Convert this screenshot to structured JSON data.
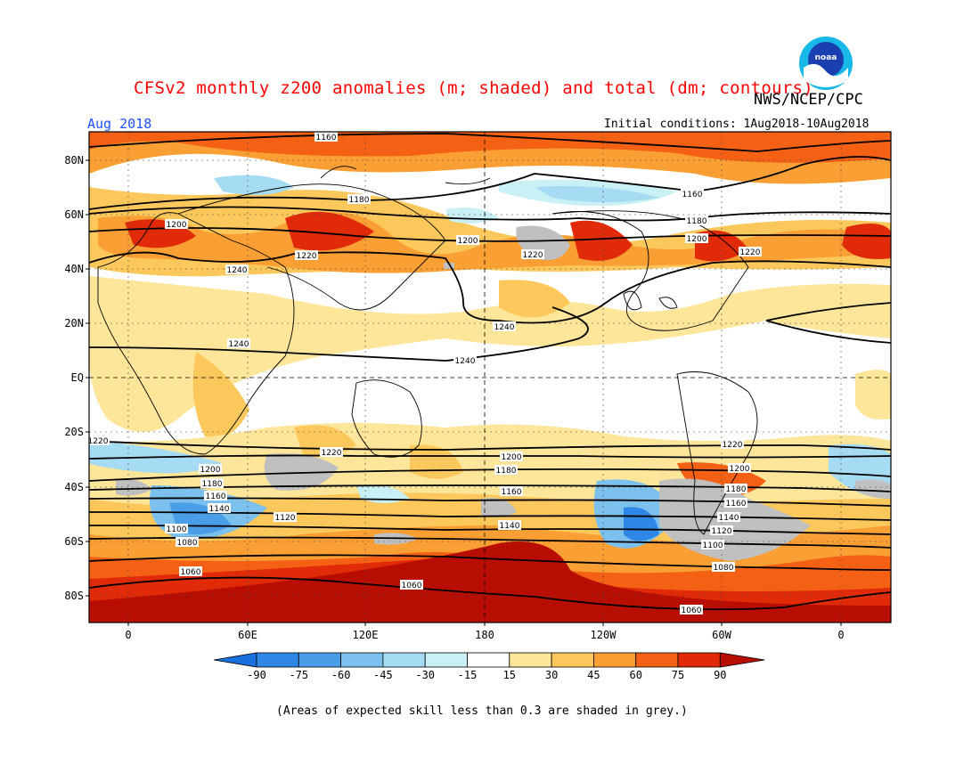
{
  "header": {
    "title": "CFSv2 monthly z200 anomalies (m; shaded) and total (dm; contours)",
    "org": "NWS/NCEP/CPC",
    "month": "Aug 2018",
    "initial_conditions": "Initial conditions: 1Aug2018-10Aug2018",
    "logo_text": "noaa"
  },
  "footer": {
    "note": "(Areas of expected skill less than 0.3 are shaded in grey.)"
  },
  "map": {
    "lat_labels": [
      "80N",
      "60N",
      "40N",
      "20N",
      "EQ",
      "20S",
      "40S",
      "60S",
      "80S"
    ],
    "lon_labels": [
      "0",
      "60E",
      "120E",
      "180",
      "120W",
      "60W",
      "0"
    ]
  },
  "colorbar": {
    "ticks": [
      "-90",
      "-75",
      "-60",
      "-45",
      "-30",
      "-15",
      "15",
      "30",
      "45",
      "60",
      "75",
      "90"
    ],
    "colors": [
      "#1a6fde",
      "#2e86e6",
      "#4a9ee8",
      "#7cc0ee",
      "#a6dcf3",
      "#c8f0f5",
      "#ffffff",
      "#fde59a",
      "#fcc85c",
      "#f99f33",
      "#f46014",
      "#e02a08",
      "#b80e02"
    ]
  },
  "contours": {
    "labels": [
      "1160",
      "1180",
      "1200",
      "1220",
      "1240",
      "1220",
      "1200",
      "1180",
      "1160",
      "1140",
      "1120",
      "1100",
      "1080",
      "1060"
    ]
  }
}
